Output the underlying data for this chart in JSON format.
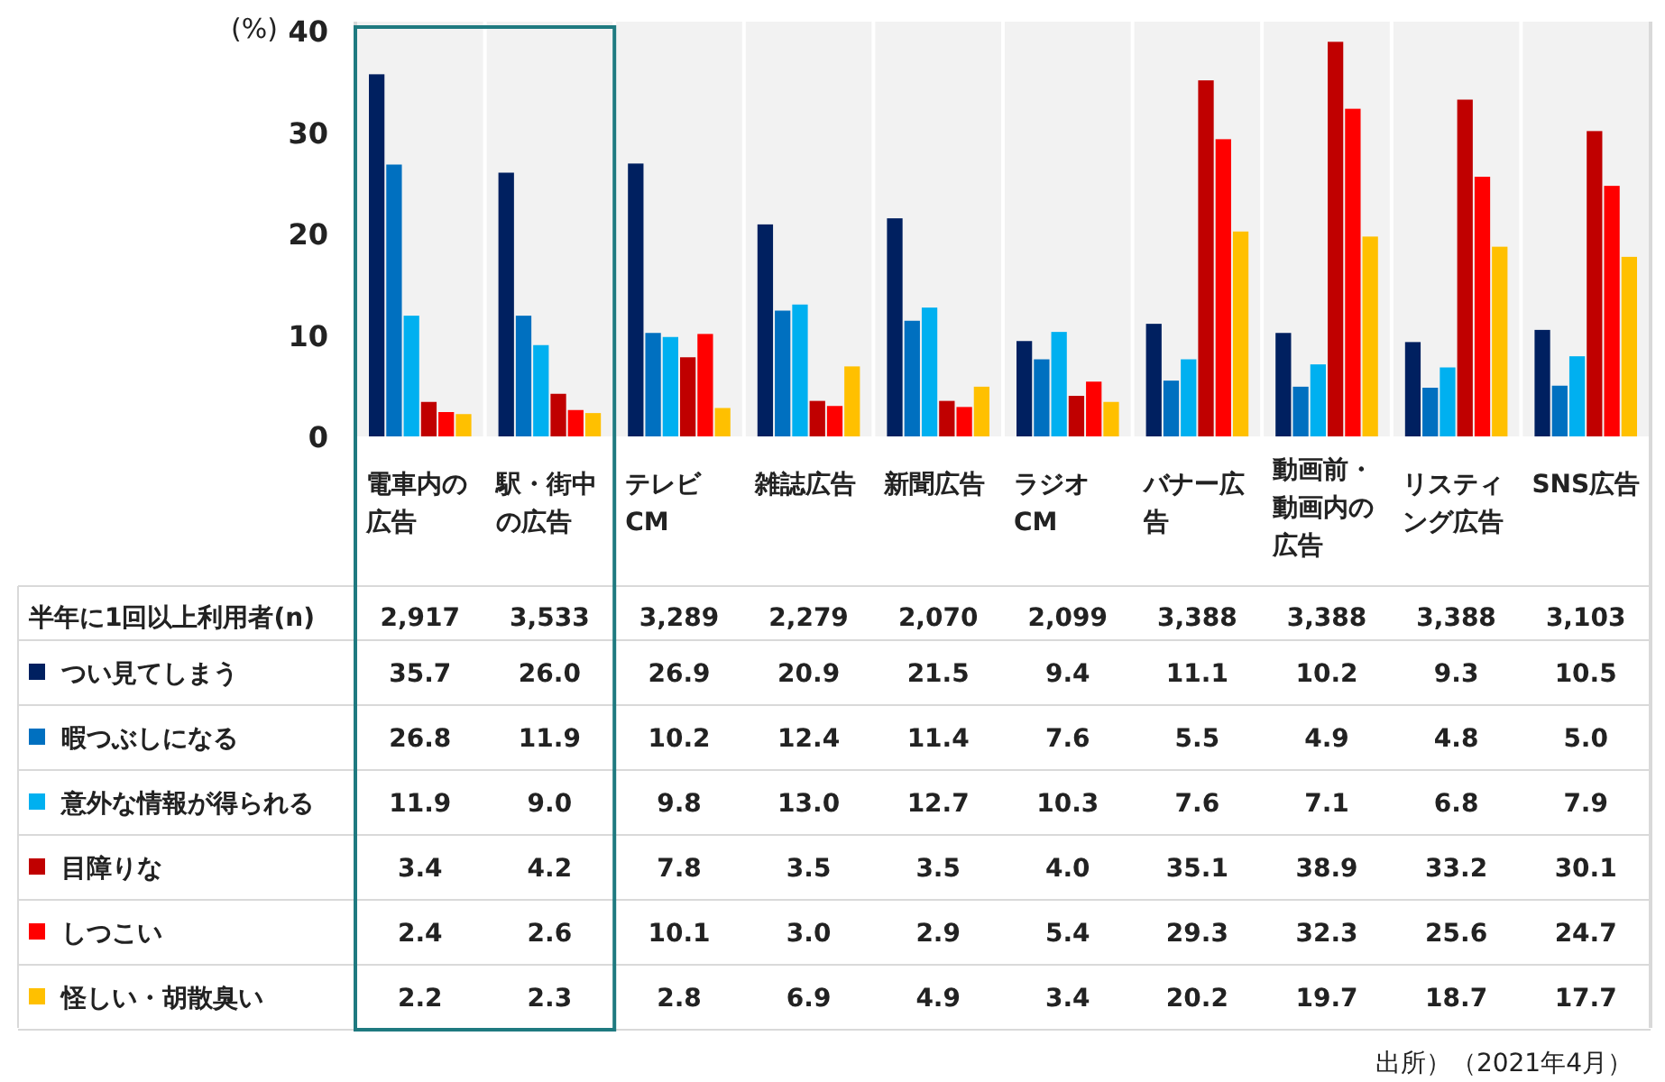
{
  "chart_data": {
    "type": "bar",
    "ylabel": "(%)",
    "ylim": [
      0,
      40
    ],
    "yticks": [
      0,
      10,
      20,
      30,
      40
    ],
    "grid": false,
    "legend": "bottom",
    "categories": [
      "電車内の広告",
      "駅・街中の広告",
      "テレビCM",
      "雑誌広告",
      "新聞広告",
      "ラジオCM",
      "バナー広告",
      "動画前・動画内の広告",
      "リスティング広告",
      "SNS広告"
    ],
    "series": [
      {
        "name": "つい見てしまう",
        "color": "#002060",
        "values": [
          35.7,
          26.0,
          26.9,
          20.9,
          21.5,
          9.4,
          11.1,
          10.2,
          9.3,
          10.5
        ],
        "value_labels": [
          "35.7",
          "26.0",
          "26.9",
          "20.9",
          "21.5",
          "9.4",
          "11.1",
          "10.2",
          "9.3",
          "10.5"
        ]
      },
      {
        "name": "暇つぶしになる",
        "color": "#0070c0",
        "values": [
          26.8,
          11.9,
          10.2,
          12.4,
          11.4,
          7.6,
          5.5,
          4.9,
          4.8,
          5.0
        ],
        "value_labels": [
          "26.8",
          "11.9",
          "10.2",
          "12.4",
          "11.4",
          "7.6",
          "5.5",
          "4.9",
          "4.8",
          "5.0"
        ]
      },
      {
        "name": "意外な情報が得られる",
        "color": "#00b0f0",
        "values": [
          11.9,
          9.0,
          9.8,
          13.0,
          12.7,
          10.3,
          7.6,
          7.1,
          6.8,
          7.9
        ],
        "value_labels": [
          "11.9",
          "9.0",
          "9.8",
          "13.0",
          "12.7",
          "10.3",
          "7.6",
          "7.1",
          "6.8",
          "7.9"
        ]
      },
      {
        "name": "目障りな",
        "color": "#c00000",
        "values": [
          3.4,
          4.2,
          7.8,
          3.5,
          3.5,
          4.0,
          35.1,
          38.9,
          33.2,
          30.1
        ],
        "value_labels": [
          "3.4",
          "4.2",
          "7.8",
          "3.5",
          "3.5",
          "4.0",
          "35.1",
          "38.9",
          "33.2",
          "30.1"
        ]
      },
      {
        "name": "しつこい",
        "color": "#ff0000",
        "values": [
          2.4,
          2.6,
          10.1,
          3.0,
          2.9,
          5.4,
          29.3,
          32.3,
          25.6,
          24.7
        ],
        "value_labels": [
          "2.4",
          "2.6",
          "10.1",
          "3.0",
          "2.9",
          "5.4",
          "29.3",
          "32.3",
          "25.6",
          "24.7"
        ]
      },
      {
        "name": "怪しい・胡散臭い",
        "color": "#ffc000",
        "values": [
          2.2,
          2.3,
          2.8,
          6.9,
          4.9,
          3.4,
          20.2,
          19.7,
          18.7,
          17.7
        ],
        "value_labels": [
          "2.2",
          "2.3",
          "2.8",
          "6.9",
          "4.9",
          "3.4",
          "20.2",
          "19.7",
          "18.7",
          "17.7"
        ]
      }
    ],
    "annotations": [
      "半年に1回以上利用者(n)",
      "2,917",
      "3,533",
      "3,289",
      "2,279",
      "2,070",
      "2,099",
      "3,388",
      "3,388",
      "3,388",
      "3,103",
      "出所）（2021年4月）"
    ]
  }
}
